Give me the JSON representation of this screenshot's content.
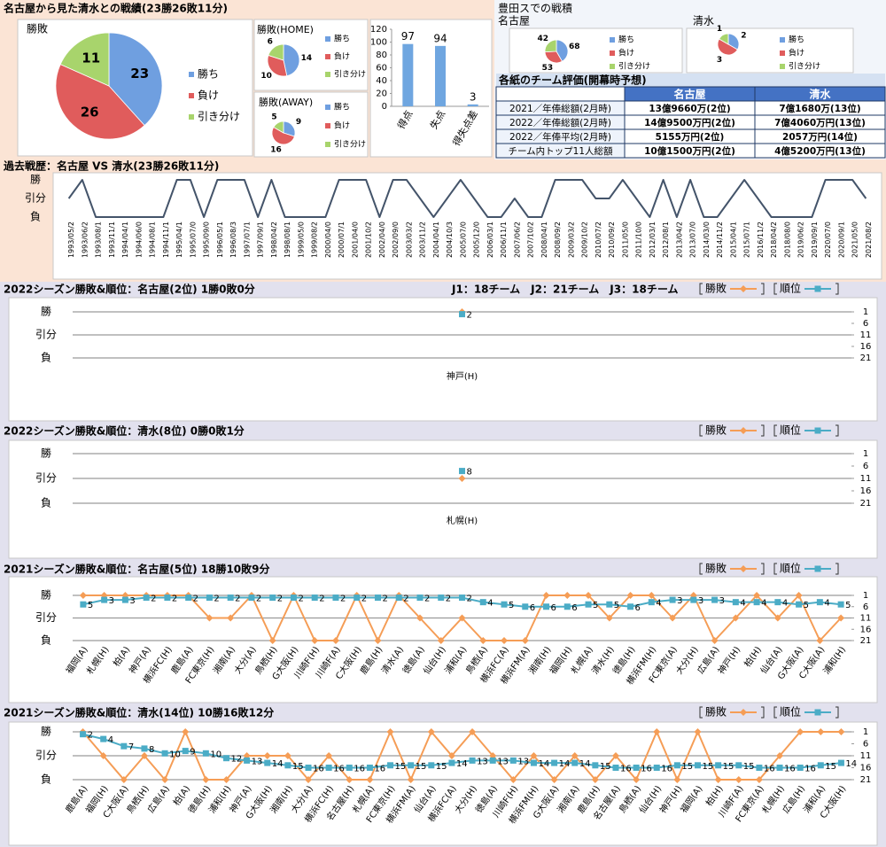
{
  "header": {
    "title": "名古屋から見た清水との戦績(23勝26敗11分)"
  },
  "toyota": {
    "title": "豊田スでの戦積"
  },
  "table": {
    "title": "各紙のチーム評価(開幕時予想)",
    "columns": [
      "名古屋",
      "清水"
    ],
    "rows": [
      [
        "2021／年俸総額(2月時)",
        "13億9660万(2位)",
        "7億1680万(13位)"
      ],
      [
        "2022／年俸総額(2月時)",
        "14億9500万円(2位)",
        "7億4060万円(13位)"
      ],
      [
        "2022／年俸平均(2月時)",
        "5155万円(2位)",
        "2057万円(14位)"
      ],
      [
        "チーム内トップ11人総額",
        "10億1500万円(2位)",
        "4億5200万円(13位)"
      ]
    ]
  },
  "chart_data": [
    {
      "type": "pie",
      "title": "勝敗",
      "categories": [
        "勝ち",
        "負け",
        "引き分け"
      ],
      "values": [
        23,
        26,
        11
      ],
      "colors": [
        "#6f9fe0",
        "#e05c5c",
        "#a8d46c"
      ]
    },
    {
      "type": "pie",
      "title": "勝敗(HOME)",
      "categories": [
        "勝ち",
        "負け",
        "引き分け"
      ],
      "values": [
        14,
        10,
        6
      ],
      "colors": [
        "#6f9fe0",
        "#e05c5c",
        "#a8d46c"
      ]
    },
    {
      "type": "pie",
      "title": "勝敗(AWAY)",
      "categories": [
        "勝ち",
        "負け",
        "引き分け"
      ],
      "values": [
        9,
        16,
        5
      ],
      "colors": [
        "#6f9fe0",
        "#e05c5c",
        "#a8d46c"
      ]
    },
    {
      "type": "bar",
      "categories": [
        "得点",
        "失点",
        "得失点差"
      ],
      "values": [
        97,
        94,
        3
      ],
      "color": "#6fa6e0",
      "ylim": [
        0,
        120
      ],
      "yticks": [
        0,
        20,
        40,
        60,
        80,
        100,
        120
      ]
    },
    {
      "type": "pie",
      "title": "名古屋",
      "categories": [
        "勝ち",
        "負け",
        "引き分け"
      ],
      "values": [
        68,
        53,
        42
      ],
      "colors": [
        "#6f9fe0",
        "#e05c5c",
        "#a8d46c"
      ]
    },
    {
      "type": "pie",
      "title": "清水",
      "categories": [
        "勝ち",
        "負け",
        "引き分け"
      ],
      "values": [
        2,
        3,
        1
      ],
      "colors": [
        "#6f9fe0",
        "#e05c5c",
        "#a8d46c"
      ]
    },
    {
      "type": "line",
      "title": "過去戦歴：名古屋 VS 清水(23勝26敗11分)",
      "categories": [
        "1993/05/2",
        "1993/06/2",
        "1993/08/1",
        "1993/11/1",
        "1994/04/1",
        "1994/06/0",
        "1994/08/1",
        "1994/11/1",
        "1995/04/1",
        "1995/07/0",
        "1995/09/0",
        "1996/05/1",
        "1996/08/3",
        "1997/07/1",
        "1997/09/1",
        "1998/04/2",
        "1998/08/1",
        "1999/05/0",
        "1999/08/2",
        "2000/04/0",
        "2000/07/1",
        "2001/04/0",
        "2001/10/2",
        "2002/04/0",
        "2002/09/0",
        "2003/03/2",
        "2003/11/2",
        "2004/04/1",
        "2004/10/3",
        "2005/07/0",
        "2005/12/0",
        "2006/03/1",
        "2006/11/1",
        "2007/06/2",
        "2007/10/2",
        "2008/04/1",
        "2008/09/2",
        "2009/03/2",
        "2009/10/2",
        "2010/07/2",
        "2010/09/2",
        "2011/05/0",
        "2011/10/0",
        "2012/03/1",
        "2012/08/1",
        "2013/04/2",
        "2013/07/0",
        "2014/03/0",
        "2014/11/2",
        "2015/04/1",
        "2015/07/1",
        "2016/11/2",
        "2018/04/2",
        "2018/08/0",
        "2019/06/2",
        "2019/09/1",
        "2020/07/0",
        "2020/09/1",
        "2021/05/0",
        "2021/08/2"
      ],
      "values": [
        0,
        1,
        -1,
        -1,
        -1,
        -1,
        -1,
        -1,
        1,
        1,
        -1,
        1,
        1,
        1,
        -1,
        1,
        -1,
        -1,
        -1,
        -1,
        1,
        1,
        1,
        -1,
        1,
        1,
        0,
        -1,
        0,
        1,
        0,
        -1,
        -1,
        0,
        -1,
        -1,
        1,
        1,
        1,
        0,
        0,
        1,
        0,
        -1,
        1,
        -1,
        1,
        -1,
        -1,
        0,
        1,
        0,
        -1,
        -1,
        -1,
        -1,
        1,
        1,
        1,
        0
      ],
      "color": "#44546a",
      "ylim": [
        -1,
        1
      ],
      "yticks": [
        {
          "value": 1,
          "label": "勝"
        },
        {
          "value": 0,
          "label": "引分"
        },
        {
          "value": -1,
          "label": "負"
        }
      ],
      "grid": false
    },
    {
      "type": "line",
      "title": "2022シーズン勝敗&順位：名古屋(2位) 1勝0敗0分",
      "annotation": "J1：18チーム　J2：21チーム　J3：18チーム",
      "categories": [
        "神戸(H)"
      ],
      "series": [
        {
          "name": "勝敗",
          "color": "#f59d56",
          "marker": "diamond",
          "values": [
            1
          ]
        },
        {
          "name": "順位",
          "color": "#4bacc6",
          "marker": "square",
          "axis": "y2",
          "data_labels": true,
          "values": [
            2
          ]
        }
      ],
      "ylim": [
        -1,
        1
      ],
      "yticks": [
        {
          "value": 1,
          "label": "勝"
        },
        {
          "value": 0,
          "label": "引分"
        },
        {
          "value": -1,
          "label": "負"
        }
      ],
      "y2lim": [
        21,
        1
      ],
      "y2ticks": [
        1,
        6,
        11,
        16,
        21
      ],
      "grid": true,
      "legend": "top-right"
    },
    {
      "type": "line",
      "title": "2022シーズン勝敗&順位：清水(8位) 0勝0敗1分",
      "categories": [
        "札幌(H)"
      ],
      "series": [
        {
          "name": "勝敗",
          "color": "#f59d56",
          "marker": "diamond",
          "values": [
            0
          ]
        },
        {
          "name": "順位",
          "color": "#4bacc6",
          "marker": "square",
          "axis": "y2",
          "data_labels": true,
          "values": [
            8
          ]
        }
      ],
      "ylim": [
        -1,
        1
      ],
      "yticks": [
        {
          "value": 1,
          "label": "勝"
        },
        {
          "value": 0,
          "label": "引分"
        },
        {
          "value": -1,
          "label": "負"
        }
      ],
      "y2lim": [
        21,
        1
      ],
      "y2ticks": [
        1,
        6,
        11,
        16,
        21
      ],
      "grid": true,
      "legend": "top-right"
    },
    {
      "type": "line",
      "title": "2021シーズン勝敗&順位：名古屋(5位) 18勝10敗9分",
      "categories": [
        "福岡(A)",
        "札幌(H)",
        "柏(A)",
        "神戸(A)",
        "横浜FC(H)",
        "鹿島(A)",
        "FC東京(H)",
        "湘南(A)",
        "大分(A)",
        "鳥栖(H)",
        "G大阪(H)",
        "川崎F(H)",
        "川崎F(A)",
        "C大阪(H)",
        "鹿島(H)",
        "清水(A)",
        "徳島(A)",
        "仙台(H)",
        "浦和(A)",
        "鳥栖(A)",
        "横浜FC(A)",
        "横浜FM(A)",
        "湘南(H)",
        "福岡(H)",
        "札幌(A)",
        "清水(H)",
        "徳島(H)",
        "横浜FM(H)",
        "FC東京(A)",
        "大分(H)",
        "広島(A)",
        "神戸(H)",
        "柏(H)",
        "仙台(A)",
        "G大阪(A)",
        "C大阪(A)",
        "浦和(H)"
      ],
      "series": [
        {
          "name": "勝敗",
          "color": "#f59d56",
          "marker": "diamond",
          "values": [
            1,
            1,
            1,
            1,
            1,
            1,
            0,
            0,
            1,
            -1,
            1,
            -1,
            -1,
            1,
            -1,
            1,
            0,
            -1,
            0,
            -1,
            -1,
            -1,
            1,
            1,
            1,
            0,
            1,
            1,
            0,
            1,
            -1,
            0,
            1,
            0,
            1,
            -1,
            0
          ]
        },
        {
          "name": "順位",
          "color": "#4bacc6",
          "marker": "square",
          "axis": "y2",
          "data_labels": true,
          "values": [
            5,
            3,
            3,
            2,
            2,
            2,
            2,
            2,
            2,
            2,
            2,
            2,
            2,
            2,
            2,
            2,
            2,
            2,
            2,
            4,
            5,
            6,
            6,
            6,
            5,
            5,
            6,
            4,
            3,
            3,
            3,
            4,
            4,
            4,
            5,
            4,
            5
          ]
        }
      ],
      "ylim": [
        -1,
        1
      ],
      "yticks": [
        {
          "value": 1,
          "label": "勝"
        },
        {
          "value": 0,
          "label": "引分"
        },
        {
          "value": -1,
          "label": "負"
        }
      ],
      "y2lim": [
        21,
        1
      ],
      "y2ticks": [
        1,
        6,
        11,
        16,
        21
      ],
      "grid": true,
      "legend": "top-right"
    },
    {
      "type": "line",
      "title": "2021シーズン勝敗&順位：清水(14位) 10勝16敗12分",
      "categories": [
        "鹿島(A)",
        "福岡(H)",
        "C大阪(A)",
        "鳥栖(H)",
        "広島(A)",
        "柏(A)",
        "徳島(H)",
        "浦和(H)",
        "神戸(A)",
        "G大阪(H)",
        "湘南(H)",
        "大分(A)",
        "横浜FC(H)",
        "名古屋(H)",
        "札幌(A)",
        "FC東京(H)",
        "横浜FM(A)",
        "仙台(A)",
        "横浜FC(A)",
        "大分(H)",
        "徳島(A)",
        "川崎F(H)",
        "横浜FM(H)",
        "G大阪(A)",
        "湘南(A)",
        "鹿島(H)",
        "名古屋(A)",
        "鳥栖(A)",
        "仙台(H)",
        "神戸(H)",
        "福岡(A)",
        "柏(H)",
        "川崎F(A)",
        "FC東京(A)",
        "札幌(H)",
        "広島(H)",
        "浦和(A)",
        "C大阪(H)"
      ],
      "series": [
        {
          "name": "勝敗",
          "color": "#f59d56",
          "marker": "diamond",
          "values": [
            1,
            0,
            -1,
            0,
            -1,
            1,
            -1,
            -1,
            0,
            0,
            0,
            -1,
            0,
            -1,
            -1,
            1,
            -1,
            1,
            0,
            1,
            0,
            -1,
            0,
            -1,
            0,
            -1,
            0,
            -1,
            1,
            -1,
            1,
            -1,
            -1,
            -1,
            0,
            1,
            1,
            1
          ]
        },
        {
          "name": "順位",
          "color": "#4bacc6",
          "marker": "square",
          "axis": "y2",
          "data_labels": true,
          "values": [
            2,
            4,
            7,
            8,
            10,
            9,
            10,
            12,
            13,
            14,
            15,
            16,
            16,
            16,
            16,
            15,
            15,
            15,
            14,
            13,
            13,
            13,
            14,
            14,
            14,
            15,
            16,
            16,
            16,
            15,
            15,
            15,
            15,
            16,
            16,
            16,
            15,
            14
          ]
        }
      ],
      "ylim": [
        -1,
        1
      ],
      "yticks": [
        {
          "value": 1,
          "label": "勝"
        },
        {
          "value": 0,
          "label": "引分"
        },
        {
          "value": -1,
          "label": "負"
        }
      ],
      "y2lim": [
        21,
        1
      ],
      "y2ticks": [
        1,
        6,
        11,
        16,
        21
      ],
      "grid": true,
      "legend": "top-right"
    }
  ]
}
